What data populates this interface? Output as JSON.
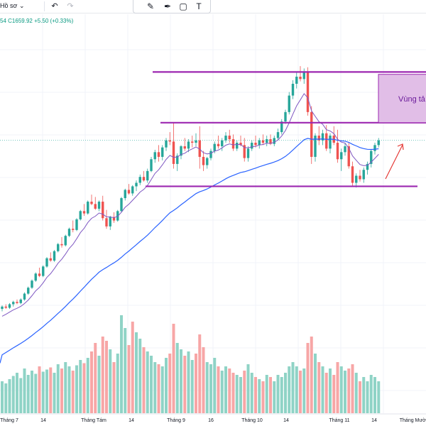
{
  "toolbar": {
    "profile_label": "Hồ sơ",
    "profile_caret": "⌄",
    "undo_icon": "undo-icon",
    "redo_icon": "redo-icon"
  },
  "drawing_toolbar": {
    "tools": [
      "brush-icon",
      "pen-icon",
      "rectangle-icon",
      "text-icon"
    ],
    "text_tool_glyph": "T"
  },
  "legend": {
    "prefix": "54",
    "close": "C1659.92",
    "change": "+5.50 (+0.33%)"
  },
  "colors": {
    "up": "#26a69a",
    "down": "#ef5350",
    "up_volume": "#8fd3c6",
    "down_volume": "#f7a6a6",
    "ma_short": "#7e57c2",
    "ma_long": "#2962ff",
    "zone_line": "#9c27b0",
    "zone_fill": "#e1bee7",
    "arrow": "#e53935"
  },
  "annotation": {
    "zone_label": "Vùng tả"
  },
  "chart_data": {
    "type": "candlestick",
    "title": "",
    "x_axis_labels": [
      "Tháng 7",
      "14",
      "Tháng Tám",
      "14",
      "Tháng 9",
      "16",
      "Tháng 10",
      "14",
      "Tháng 11",
      "14",
      "Tháng Mười"
    ],
    "ylim": [
      1220,
      1750
    ],
    "volume_max": 100,
    "ohlc": [
      [
        1262,
        1268,
        1258,
        1266
      ],
      [
        1266,
        1270,
        1262,
        1264
      ],
      [
        1264,
        1272,
        1262,
        1270
      ],
      [
        1270,
        1276,
        1266,
        1274
      ],
      [
        1274,
        1278,
        1270,
        1272
      ],
      [
        1272,
        1280,
        1270,
        1278
      ],
      [
        1278,
        1290,
        1276,
        1288
      ],
      [
        1288,
        1300,
        1286,
        1298
      ],
      [
        1298,
        1312,
        1296,
        1310
      ],
      [
        1310,
        1324,
        1308,
        1322
      ],
      [
        1322,
        1332,
        1316,
        1318
      ],
      [
        1318,
        1336,
        1316,
        1334
      ],
      [
        1334,
        1350,
        1332,
        1348
      ],
      [
        1348,
        1358,
        1342,
        1344
      ],
      [
        1344,
        1362,
        1342,
        1360
      ],
      [
        1360,
        1374,
        1358,
        1372
      ],
      [
        1372,
        1384,
        1366,
        1370
      ],
      [
        1370,
        1388,
        1368,
        1386
      ],
      [
        1386,
        1400,
        1384,
        1398
      ],
      [
        1398,
        1412,
        1392,
        1396
      ],
      [
        1396,
        1416,
        1394,
        1414
      ],
      [
        1414,
        1430,
        1412,
        1428
      ],
      [
        1428,
        1440,
        1420,
        1424
      ],
      [
        1424,
        1446,
        1422,
        1444
      ],
      [
        1444,
        1456,
        1438,
        1440
      ],
      [
        1440,
        1452,
        1430,
        1432
      ],
      [
        1432,
        1446,
        1428,
        1444
      ],
      [
        1444,
        1454,
        1412,
        1416
      ],
      [
        1416,
        1430,
        1398,
        1402
      ],
      [
        1402,
        1420,
        1396,
        1418
      ],
      [
        1418,
        1426,
        1408,
        1412
      ],
      [
        1412,
        1430,
        1410,
        1428
      ],
      [
        1428,
        1452,
        1426,
        1450
      ],
      [
        1450,
        1466,
        1446,
        1464
      ],
      [
        1464,
        1474,
        1456,
        1458
      ],
      [
        1458,
        1472,
        1454,
        1470
      ],
      [
        1470,
        1480,
        1462,
        1476
      ],
      [
        1476,
        1490,
        1472,
        1486
      ],
      [
        1486,
        1496,
        1478,
        1480
      ],
      [
        1480,
        1500,
        1476,
        1496
      ],
      [
        1496,
        1520,
        1494,
        1516
      ],
      [
        1516,
        1532,
        1510,
        1528
      ],
      [
        1528,
        1540,
        1512,
        1520
      ],
      [
        1520,
        1540,
        1514,
        1536
      ],
      [
        1536,
        1552,
        1530,
        1548
      ],
      [
        1548,
        1562,
        1540,
        1546
      ],
      [
        1546,
        1578,
        1500,
        1508
      ],
      [
        1508,
        1526,
        1496,
        1522
      ],
      [
        1522,
        1540,
        1516,
        1538
      ],
      [
        1538,
        1552,
        1530,
        1534
      ],
      [
        1534,
        1550,
        1528,
        1546
      ],
      [
        1546,
        1556,
        1536,
        1544
      ],
      [
        1544,
        1560,
        1538,
        1548
      ],
      [
        1548,
        1572,
        1500,
        1520
      ],
      [
        1520,
        1530,
        1496,
        1506
      ],
      [
        1506,
        1520,
        1500,
        1518
      ],
      [
        1518,
        1534,
        1514,
        1530
      ],
      [
        1530,
        1546,
        1526,
        1542
      ],
      [
        1542,
        1556,
        1534,
        1538
      ],
      [
        1538,
        1552,
        1530,
        1548
      ],
      [
        1548,
        1562,
        1544,
        1556
      ],
      [
        1556,
        1566,
        1544,
        1550
      ],
      [
        1550,
        1558,
        1530,
        1534
      ],
      [
        1534,
        1548,
        1530,
        1544
      ],
      [
        1544,
        1556,
        1538,
        1540
      ],
      [
        1540,
        1552,
        1512,
        1518
      ],
      [
        1518,
        1538,
        1512,
        1534
      ],
      [
        1534,
        1548,
        1530,
        1544
      ],
      [
        1544,
        1556,
        1536,
        1540
      ],
      [
        1540,
        1552,
        1534,
        1548
      ],
      [
        1548,
        1558,
        1540,
        1544
      ],
      [
        1544,
        1556,
        1538,
        1550
      ],
      [
        1550,
        1558,
        1540,
        1542
      ],
      [
        1542,
        1556,
        1538,
        1552
      ],
      [
        1552,
        1568,
        1548,
        1562
      ],
      [
        1562,
        1584,
        1558,
        1580
      ],
      [
        1580,
        1600,
        1576,
        1596
      ],
      [
        1596,
        1630,
        1592,
        1624
      ],
      [
        1624,
        1650,
        1618,
        1644
      ],
      [
        1644,
        1664,
        1636,
        1656
      ],
      [
        1656,
        1674,
        1648,
        1652
      ],
      [
        1652,
        1670,
        1644,
        1664
      ],
      [
        1664,
        1672,
        1590,
        1596
      ],
      [
        1596,
        1606,
        1508,
        1520
      ],
      [
        1520,
        1560,
        1512,
        1556
      ],
      [
        1556,
        1572,
        1540,
        1548
      ],
      [
        1548,
        1566,
        1540,
        1560
      ],
      [
        1560,
        1574,
        1530,
        1534
      ],
      [
        1534,
        1560,
        1526,
        1556
      ],
      [
        1556,
        1572,
        1540,
        1544
      ],
      [
        1544,
        1566,
        1510,
        1516
      ],
      [
        1516,
        1534,
        1496,
        1528
      ],
      [
        1528,
        1544,
        1522,
        1538
      ],
      [
        1538,
        1544,
        1500,
        1504
      ],
      [
        1504,
        1512,
        1470,
        1476
      ],
      [
        1476,
        1492,
        1468,
        1488
      ],
      [
        1488,
        1498,
        1478,
        1482
      ],
      [
        1482,
        1502,
        1476,
        1498
      ],
      [
        1498,
        1512,
        1490,
        1508
      ],
      [
        1508,
        1532,
        1502,
        1530
      ],
      [
        1530,
        1544,
        1524,
        1540
      ],
      [
        1540,
        1552,
        1536,
        1548
      ]
    ],
    "volume": [
      [
        30,
        1
      ],
      [
        28,
        1
      ],
      [
        32,
        1
      ],
      [
        35,
        1
      ],
      [
        38,
        1
      ],
      [
        33,
        1
      ],
      [
        42,
        1
      ],
      [
        36,
        1
      ],
      [
        40,
        1
      ],
      [
        37,
        1
      ],
      [
        44,
        0
      ],
      [
        39,
        1
      ],
      [
        41,
        1
      ],
      [
        43,
        0
      ],
      [
        38,
        1
      ],
      [
        46,
        1
      ],
      [
        42,
        0
      ],
      [
        48,
        1
      ],
      [
        44,
        1
      ],
      [
        40,
        0
      ],
      [
        45,
        1
      ],
      [
        50,
        1
      ],
      [
        47,
        0
      ],
      [
        52,
        1
      ],
      [
        58,
        0
      ],
      [
        66,
        0
      ],
      [
        54,
        1
      ],
      [
        72,
        0
      ],
      [
        68,
        0
      ],
      [
        60,
        1
      ],
      [
        48,
        0
      ],
      [
        56,
        1
      ],
      [
        92,
        1
      ],
      [
        80,
        1
      ],
      [
        64,
        0
      ],
      [
        86,
        0
      ],
      [
        76,
        1
      ],
      [
        70,
        1
      ],
      [
        62,
        0
      ],
      [
        58,
        1
      ],
      [
        54,
        1
      ],
      [
        48,
        1
      ],
      [
        46,
        0
      ],
      [
        44,
        1
      ],
      [
        52,
        1
      ],
      [
        56,
        0
      ],
      [
        84,
        0
      ],
      [
        66,
        1
      ],
      [
        60,
        1
      ],
      [
        54,
        0
      ],
      [
        58,
        1
      ],
      [
        50,
        1
      ],
      [
        56,
        0
      ],
      [
        74,
        0
      ],
      [
        62,
        0
      ],
      [
        48,
        1
      ],
      [
        46,
        1
      ],
      [
        52,
        1
      ],
      [
        44,
        0
      ],
      [
        40,
        1
      ],
      [
        44,
        1
      ],
      [
        42,
        0
      ],
      [
        38,
        0
      ],
      [
        36,
        1
      ],
      [
        34,
        1
      ],
      [
        40,
        0
      ],
      [
        46,
        1
      ],
      [
        38,
        1
      ],
      [
        34,
        0
      ],
      [
        32,
        1
      ],
      [
        30,
        0
      ],
      [
        36,
        1
      ],
      [
        34,
        0
      ],
      [
        30,
        1
      ],
      [
        36,
        1
      ],
      [
        34,
        1
      ],
      [
        38,
        1
      ],
      [
        44,
        1
      ],
      [
        48,
        1
      ],
      [
        44,
        1
      ],
      [
        40,
        0
      ],
      [
        42,
        1
      ],
      [
        66,
        0
      ],
      [
        72,
        0
      ],
      [
        56,
        1
      ],
      [
        48,
        0
      ],
      [
        44,
        1
      ],
      [
        38,
        0
      ],
      [
        42,
        1
      ],
      [
        36,
        0
      ],
      [
        48,
        0
      ],
      [
        44,
        1
      ],
      [
        40,
        1
      ],
      [
        42,
        0
      ],
      [
        46,
        0
      ],
      [
        38,
        1
      ],
      [
        30,
        0
      ],
      [
        34,
        1
      ],
      [
        30,
        1
      ],
      [
        36,
        1
      ],
      [
        34,
        1
      ],
      [
        30,
        1
      ]
    ],
    "overlays": {
      "ma_short": "purple moving average (short period)",
      "ma_long": "blue moving average (long period)"
    },
    "annotations": {
      "resistance_upper": 1664,
      "resistance_lower": 1578,
      "support": 1470,
      "zone_box": [
        1578,
        1660
      ],
      "zone_label": "Vùng tả"
    }
  }
}
